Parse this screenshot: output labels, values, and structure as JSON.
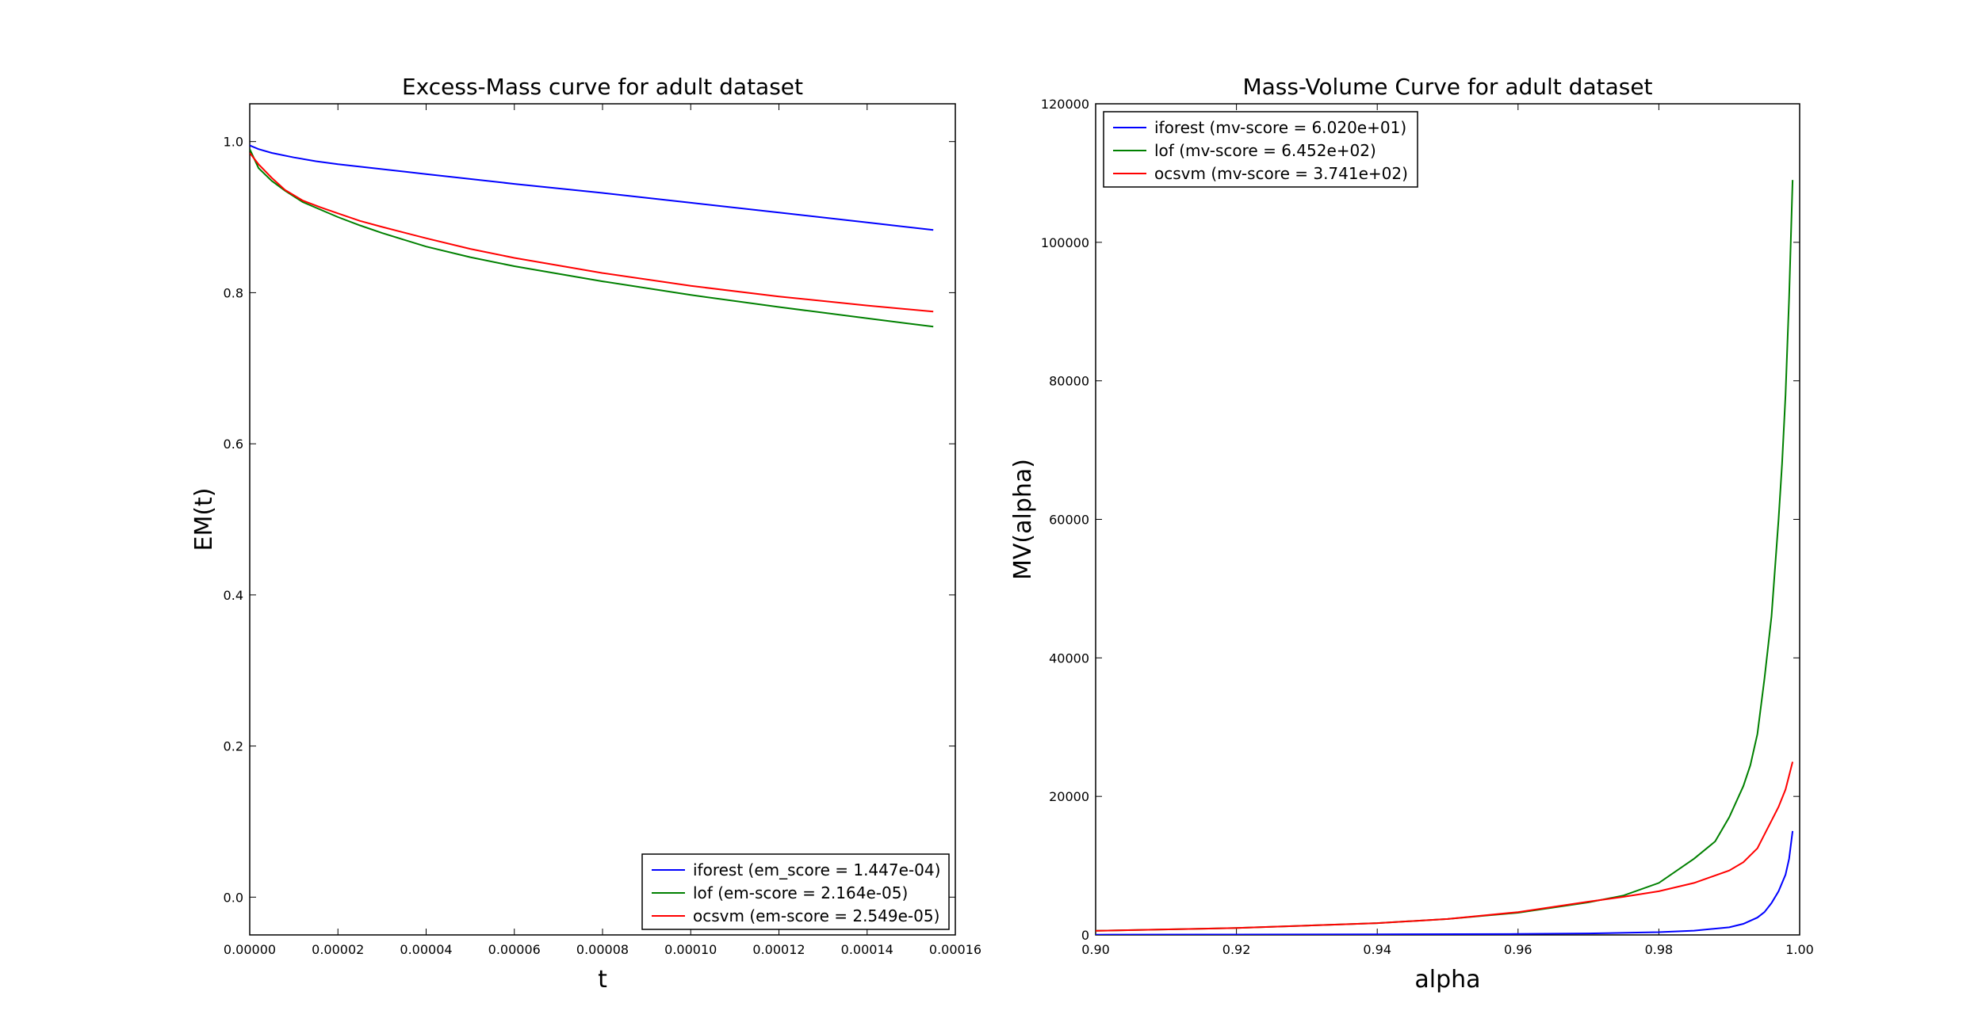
{
  "chart_data": [
    {
      "type": "line",
      "title": "Excess-Mass curve for adult dataset",
      "xlabel": "t",
      "ylabel": "EM(t)",
      "xlim": [
        0,
        0.00016
      ],
      "ylim": [
        -0.05,
        1.05
      ],
      "xticks": [
        0,
        2e-05,
        4e-05,
        6e-05,
        8e-05,
        0.0001,
        0.00012,
        0.00014,
        0.00016
      ],
      "xtick_labels": [
        "0.00000",
        "0.00002",
        "0.00004",
        "0.00006",
        "0.00008",
        "0.00010",
        "0.00012",
        "0.00014",
        "0.00016"
      ],
      "yticks": [
        0,
        0.2,
        0.4,
        0.6,
        0.8,
        1.0
      ],
      "ytick_labels": [
        "0.0",
        "0.2",
        "0.4",
        "0.6",
        "0.8",
        "1.0"
      ],
      "grid": false,
      "legend_position": "lower-right",
      "series": [
        {
          "name": "iforest (em_score = 1.447e-04)",
          "color": "#0000ff",
          "x": [
            0,
            2e-06,
            5e-06,
            1e-05,
            1.5e-05,
            2e-05,
            4e-05,
            6e-05,
            8e-05,
            0.0001,
            0.00012,
            0.00014,
            0.000155
          ],
          "y": [
            0.995,
            0.99,
            0.985,
            0.979,
            0.974,
            0.97,
            0.957,
            0.944,
            0.932,
            0.919,
            0.906,
            0.893,
            0.883
          ]
        },
        {
          "name": "lof (em-score = 2.164e-05)",
          "color": "#008000",
          "x": [
            0,
            2e-06,
            5e-06,
            8e-06,
            1.2e-05,
            1.6e-05,
            2e-05,
            2.5e-05,
            3e-05,
            4e-05,
            5e-05,
            6e-05,
            8e-05,
            0.0001,
            0.00012,
            0.00014,
            0.000155
          ],
          "y": [
            0.99,
            0.965,
            0.948,
            0.935,
            0.92,
            0.91,
            0.9,
            0.889,
            0.879,
            0.861,
            0.847,
            0.835,
            0.815,
            0.797,
            0.781,
            0.766,
            0.755
          ]
        },
        {
          "name": "ocsvm (em-score = 2.549e-05)",
          "color": "#ff0000",
          "x": [
            0,
            2e-06,
            5e-06,
            8e-06,
            1.2e-05,
            1.6e-05,
            2e-05,
            2.5e-05,
            3e-05,
            4e-05,
            5e-05,
            6e-05,
            8e-05,
            0.0001,
            0.00012,
            0.00014,
            0.000155
          ],
          "y": [
            0.985,
            0.97,
            0.952,
            0.936,
            0.922,
            0.913,
            0.905,
            0.895,
            0.887,
            0.872,
            0.858,
            0.846,
            0.826,
            0.809,
            0.795,
            0.783,
            0.775
          ]
        }
      ]
    },
    {
      "type": "line",
      "title": "Mass-Volume Curve for adult dataset",
      "xlabel": "alpha",
      "ylabel": "MV(alpha)",
      "xlim": [
        0.9,
        1.0
      ],
      "ylim": [
        0,
        120000
      ],
      "xticks": [
        0.9,
        0.92,
        0.94,
        0.96,
        0.98,
        1.0
      ],
      "xtick_labels": [
        "0.90",
        "0.92",
        "0.94",
        "0.96",
        "0.98",
        "1.00"
      ],
      "yticks": [
        0,
        20000,
        40000,
        60000,
        80000,
        100000,
        120000
      ],
      "ytick_labels": [
        "0",
        "20000",
        "40000",
        "60000",
        "80000",
        "100000",
        "120000"
      ],
      "grid": false,
      "legend_position": "upper-left",
      "series": [
        {
          "name": "iforest (mv-score = 6.020e+01)",
          "color": "#0000ff",
          "x": [
            0.9,
            0.92,
            0.94,
            0.96,
            0.97,
            0.98,
            0.985,
            0.99,
            0.992,
            0.994,
            0.995,
            0.996,
            0.997,
            0.998,
            0.9985,
            0.999
          ],
          "y": [
            40,
            60,
            90,
            140,
            220,
            400,
            620,
            1100,
            1600,
            2500,
            3300,
            4600,
            6300,
            8700,
            11000,
            15000
          ]
        },
        {
          "name": "lof (mv-score = 6.452e+02)",
          "color": "#008000",
          "x": [
            0.9,
            0.92,
            0.94,
            0.95,
            0.96,
            0.97,
            0.975,
            0.98,
            0.985,
            0.988,
            0.99,
            0.992,
            0.993,
            0.994,
            0.995,
            0.996,
            0.997,
            0.9975,
            0.998,
            0.9985,
            0.999
          ],
          "y": [
            600,
            1000,
            1700,
            2300,
            3200,
            4700,
            5700,
            7500,
            11000,
            13500,
            17000,
            21500,
            24500,
            29000,
            37000,
            46000,
            60000,
            68000,
            78000,
            92000,
            109000
          ]
        },
        {
          "name": "ocsvm (mv-score = 3.741e+02)",
          "color": "#ff0000",
          "x": [
            0.9,
            0.92,
            0.94,
            0.95,
            0.96,
            0.97,
            0.975,
            0.98,
            0.985,
            0.99,
            0.992,
            0.994,
            0.995,
            0.996,
            0.997,
            0.998,
            0.9985,
            0.999
          ],
          "y": [
            600,
            1000,
            1700,
            2300,
            3300,
            4800,
            5500,
            6300,
            7500,
            9300,
            10500,
            12500,
            14500,
            16500,
            18500,
            21000,
            23000,
            25000
          ]
        }
      ]
    }
  ]
}
